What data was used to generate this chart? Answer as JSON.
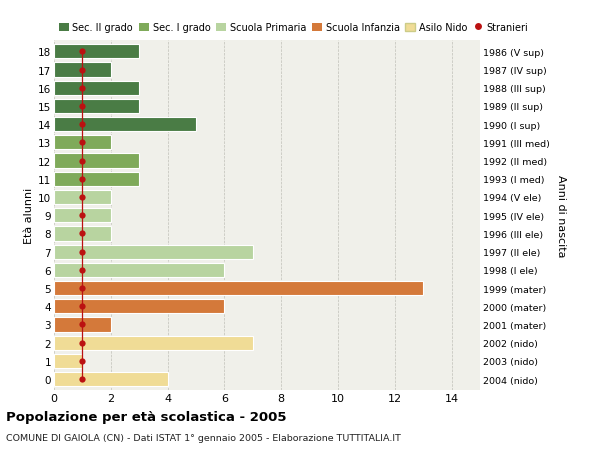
{
  "ages": [
    18,
    17,
    16,
    15,
    14,
    13,
    12,
    11,
    10,
    9,
    8,
    7,
    6,
    5,
    4,
    3,
    2,
    1,
    0
  ],
  "right_labels": [
    "1986 (V sup)",
    "1987 (IV sup)",
    "1988 (III sup)",
    "1989 (II sup)",
    "1990 (I sup)",
    "1991 (III med)",
    "1992 (II med)",
    "1993 (I med)",
    "1994 (V ele)",
    "1995 (IV ele)",
    "1996 (III ele)",
    "1997 (II ele)",
    "1998 (I ele)",
    "1999 (mater)",
    "2000 (mater)",
    "2001 (mater)",
    "2002 (nido)",
    "2003 (nido)",
    "2004 (nido)"
  ],
  "bar_values": [
    3,
    2,
    3,
    3,
    5,
    2,
    3,
    3,
    2,
    2,
    2,
    7,
    6,
    13,
    6,
    2,
    7,
    1,
    4
  ],
  "bar_colors": [
    "#4a7c45",
    "#4a7c45",
    "#4a7c45",
    "#4a7c45",
    "#4a7c45",
    "#7faa5a",
    "#7faa5a",
    "#7faa5a",
    "#b8d4a0",
    "#b8d4a0",
    "#b8d4a0",
    "#b8d4a0",
    "#b8d4a0",
    "#d4793a",
    "#d4793a",
    "#d4793a",
    "#f0dc96",
    "#f0dc96",
    "#f0dc96"
  ],
  "stranieri_x": [
    1,
    1,
    1,
    1,
    1,
    1,
    1,
    1,
    1,
    1,
    1,
    1,
    1,
    1,
    1,
    1,
    1,
    1,
    1
  ],
  "color_sec2": "#4a7c45",
  "color_sec1": "#7faa5a",
  "color_primaria": "#b8d4a0",
  "color_infanzia": "#d4793a",
  "color_nido": "#f0dc96",
  "color_stranieri": "#bb1111",
  "color_bg": "#ffffff",
  "color_plot_bg": "#f0f0ea",
  "xlim_max": 15,
  "xticks": [
    0,
    2,
    4,
    6,
    8,
    10,
    12,
    14
  ],
  "title": "Popolazione per età scolastica - 2005",
  "subtitle": "COMUNE DI GAIOLA (CN) - Dati ISTAT 1° gennaio 2005 - Elaborazione TUTTITALIA.IT",
  "ylabel": "Età alunni",
  "right_ylabel": "Anni di nascita",
  "legend_labels": [
    "Sec. II grado",
    "Sec. I grado",
    "Scuola Primaria",
    "Scuola Infanzia",
    "Asilo Nido",
    "Stranieri"
  ]
}
